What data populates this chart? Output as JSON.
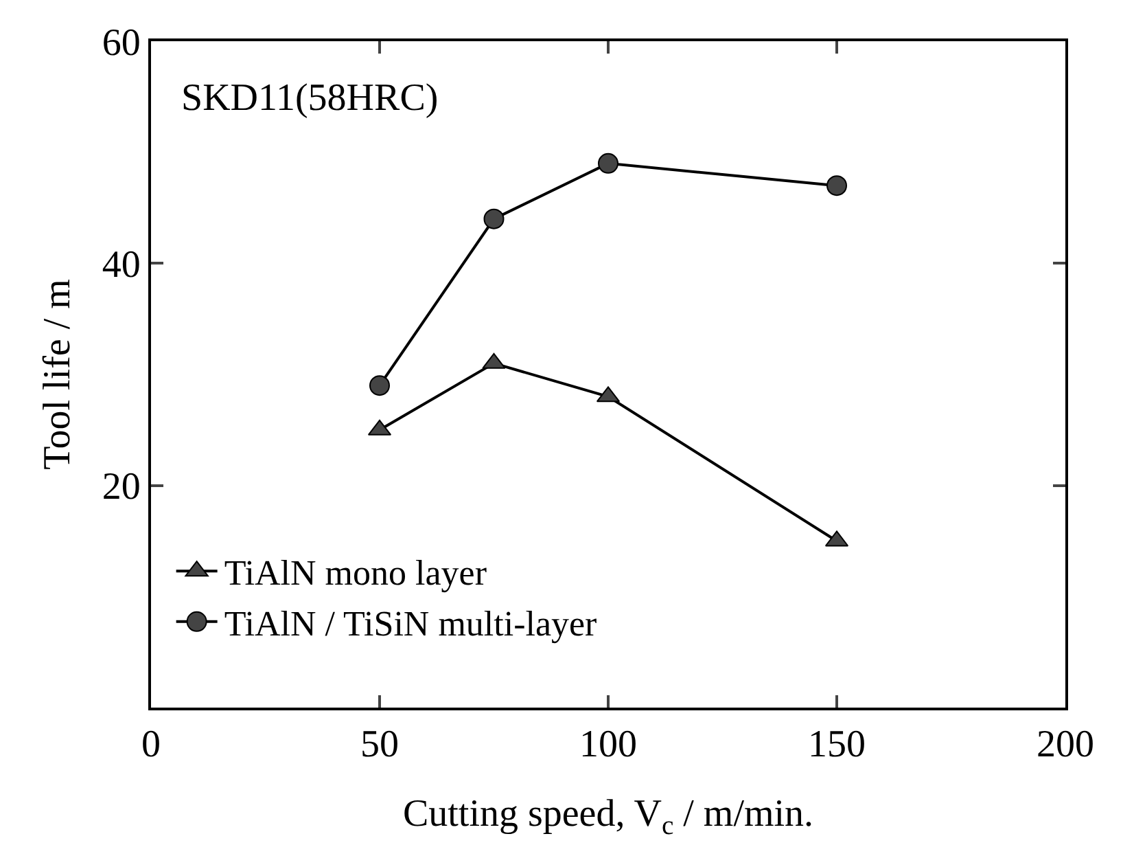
{
  "chart_data": {
    "type": "line",
    "xlabel": "Cutting speed, V$_{c}$ / m/min.",
    "ylabel": "Tool life / m",
    "x": [
      50,
      75,
      100,
      150
    ],
    "series": [
      {
        "name": "TiAlN mono layer",
        "color": "#000000",
        "marker": "triangle",
        "values": [
          25,
          31,
          28,
          15
        ]
      },
      {
        "name": "TiAlN / TiSiN multi-layer",
        "color": "#000000",
        "marker": "circle",
        "values": [
          29,
          44,
          49,
          47
        ]
      }
    ],
    "xlim": [
      0,
      200
    ],
    "xticks": [
      0,
      50,
      100,
      150,
      200
    ],
    "ylim": [
      0,
      60
    ],
    "yticks": [
      20,
      40,
      60
    ],
    "annotations": [
      "SKD11(58HRC)"
    ],
    "legend": "bottom left",
    "line_style": "solid"
  }
}
